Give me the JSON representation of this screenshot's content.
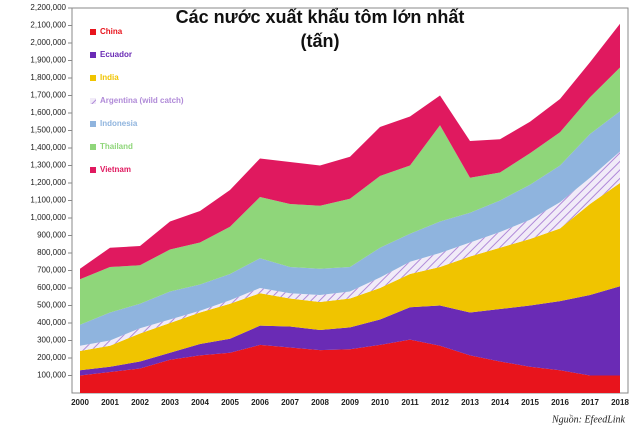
{
  "chart_data": {
    "type": "stacked_area",
    "title": [
      "Các nước xuất khẩu tôm lớn nhất",
      "(tấn)"
    ],
    "source": "Nguồn: EfeedLink",
    "categories": [
      "2000",
      "2001",
      "2002",
      "2003",
      "2004",
      "2005",
      "2006",
      "2007",
      "2008",
      "2009",
      "2010",
      "2011",
      "2012",
      "2013",
      "2014",
      "2015",
      "2016",
      "2017",
      "2018"
    ],
    "series": [
      {
        "name": "China",
        "color": "#e8141c",
        "values": [
          100000,
          120000,
          140000,
          190000,
          215000,
          230000,
          275000,
          260000,
          245000,
          250000,
          275000,
          305000,
          270000,
          215000,
          180000,
          150000,
          130000,
          100000,
          100000
        ]
      },
      {
        "name": "Ecuador",
        "color": "#6a2bb5",
        "values": [
          30000,
          30000,
          40000,
          40000,
          65000,
          80000,
          110000,
          120000,
          115000,
          125000,
          145000,
          185000,
          230000,
          245000,
          300000,
          350000,
          395000,
          460000,
          510000
        ]
      },
      {
        "name": "India",
        "color": "#f0c400",
        "values": [
          110000,
          120000,
          160000,
          170000,
          180000,
          200000,
          185000,
          160000,
          160000,
          165000,
          180000,
          190000,
          220000,
          320000,
          350000,
          380000,
          415000,
          520000,
          590000
        ]
      },
      {
        "name": "Argentina (wild catch)",
        "color": "#b08ad8",
        "values": [
          30000,
          30000,
          30000,
          20000,
          10000,
          20000,
          30000,
          30000,
          40000,
          40000,
          60000,
          70000,
          80000,
          80000,
          90000,
          110000,
          150000,
          150000,
          180000
        ]
      },
      {
        "name": "Indonesia",
        "color": "#8fb4de",
        "values": [
          120000,
          160000,
          140000,
          160000,
          150000,
          150000,
          170000,
          150000,
          150000,
          140000,
          170000,
          160000,
          180000,
          170000,
          180000,
          200000,
          210000,
          250000,
          230000
        ]
      },
      {
        "name": "Thailand",
        "color": "#8fd67a",
        "values": [
          260000,
          260000,
          220000,
          240000,
          240000,
          270000,
          350000,
          360000,
          360000,
          390000,
          410000,
          390000,
          550000,
          200000,
          160000,
          180000,
          190000,
          210000,
          250000
        ]
      },
      {
        "name": "Vietnam",
        "color": "#e0195f",
        "values": [
          60000,
          110000,
          110000,
          160000,
          180000,
          210000,
          220000,
          240000,
          230000,
          240000,
          280000,
          280000,
          170000,
          210000,
          190000,
          180000,
          190000,
          200000,
          250000
        ]
      }
    ],
    "ylim": [
      0,
      2200000
    ],
    "yticks": [
      {
        "value": 100000,
        "label": "100,000"
      },
      {
        "value": 200000,
        "label": "200,000"
      },
      {
        "value": 300000,
        "label": "300,000"
      },
      {
        "value": 400000,
        "label": "400,000"
      },
      {
        "value": 500000,
        "label": "500,000"
      },
      {
        "value": 600000,
        "label": "600,000"
      },
      {
        "value": 700000,
        "label": "700,000"
      },
      {
        "value": 800000,
        "label": "800,000"
      },
      {
        "value": 900000,
        "label": "900,000"
      },
      {
        "value": 1000000,
        "label": "1,000,000"
      },
      {
        "value": 1100000,
        "label": "1,100,000"
      },
      {
        "value": 1200000,
        "label": "1,200,000"
      },
      {
        "value": 1300000,
        "label": "1,300,000"
      },
      {
        "value": 1400000,
        "label": "1,400,000"
      },
      {
        "value": 1500000,
        "label": "1,500,000"
      },
      {
        "value": 1600000,
        "label": "1,600,000"
      },
      {
        "value": 1700000,
        "label": "1,700,000"
      },
      {
        "value": 1800000,
        "label": "1,800,000"
      },
      {
        "value": 1900000,
        "label": "1,900,000"
      },
      {
        "value": 2000000,
        "label": "2,000,000"
      },
      {
        "value": 2100000,
        "label": "2,100,000"
      },
      {
        "value": 2200000,
        "label": "2,200,000"
      }
    ],
    "legend": "top-left"
  }
}
